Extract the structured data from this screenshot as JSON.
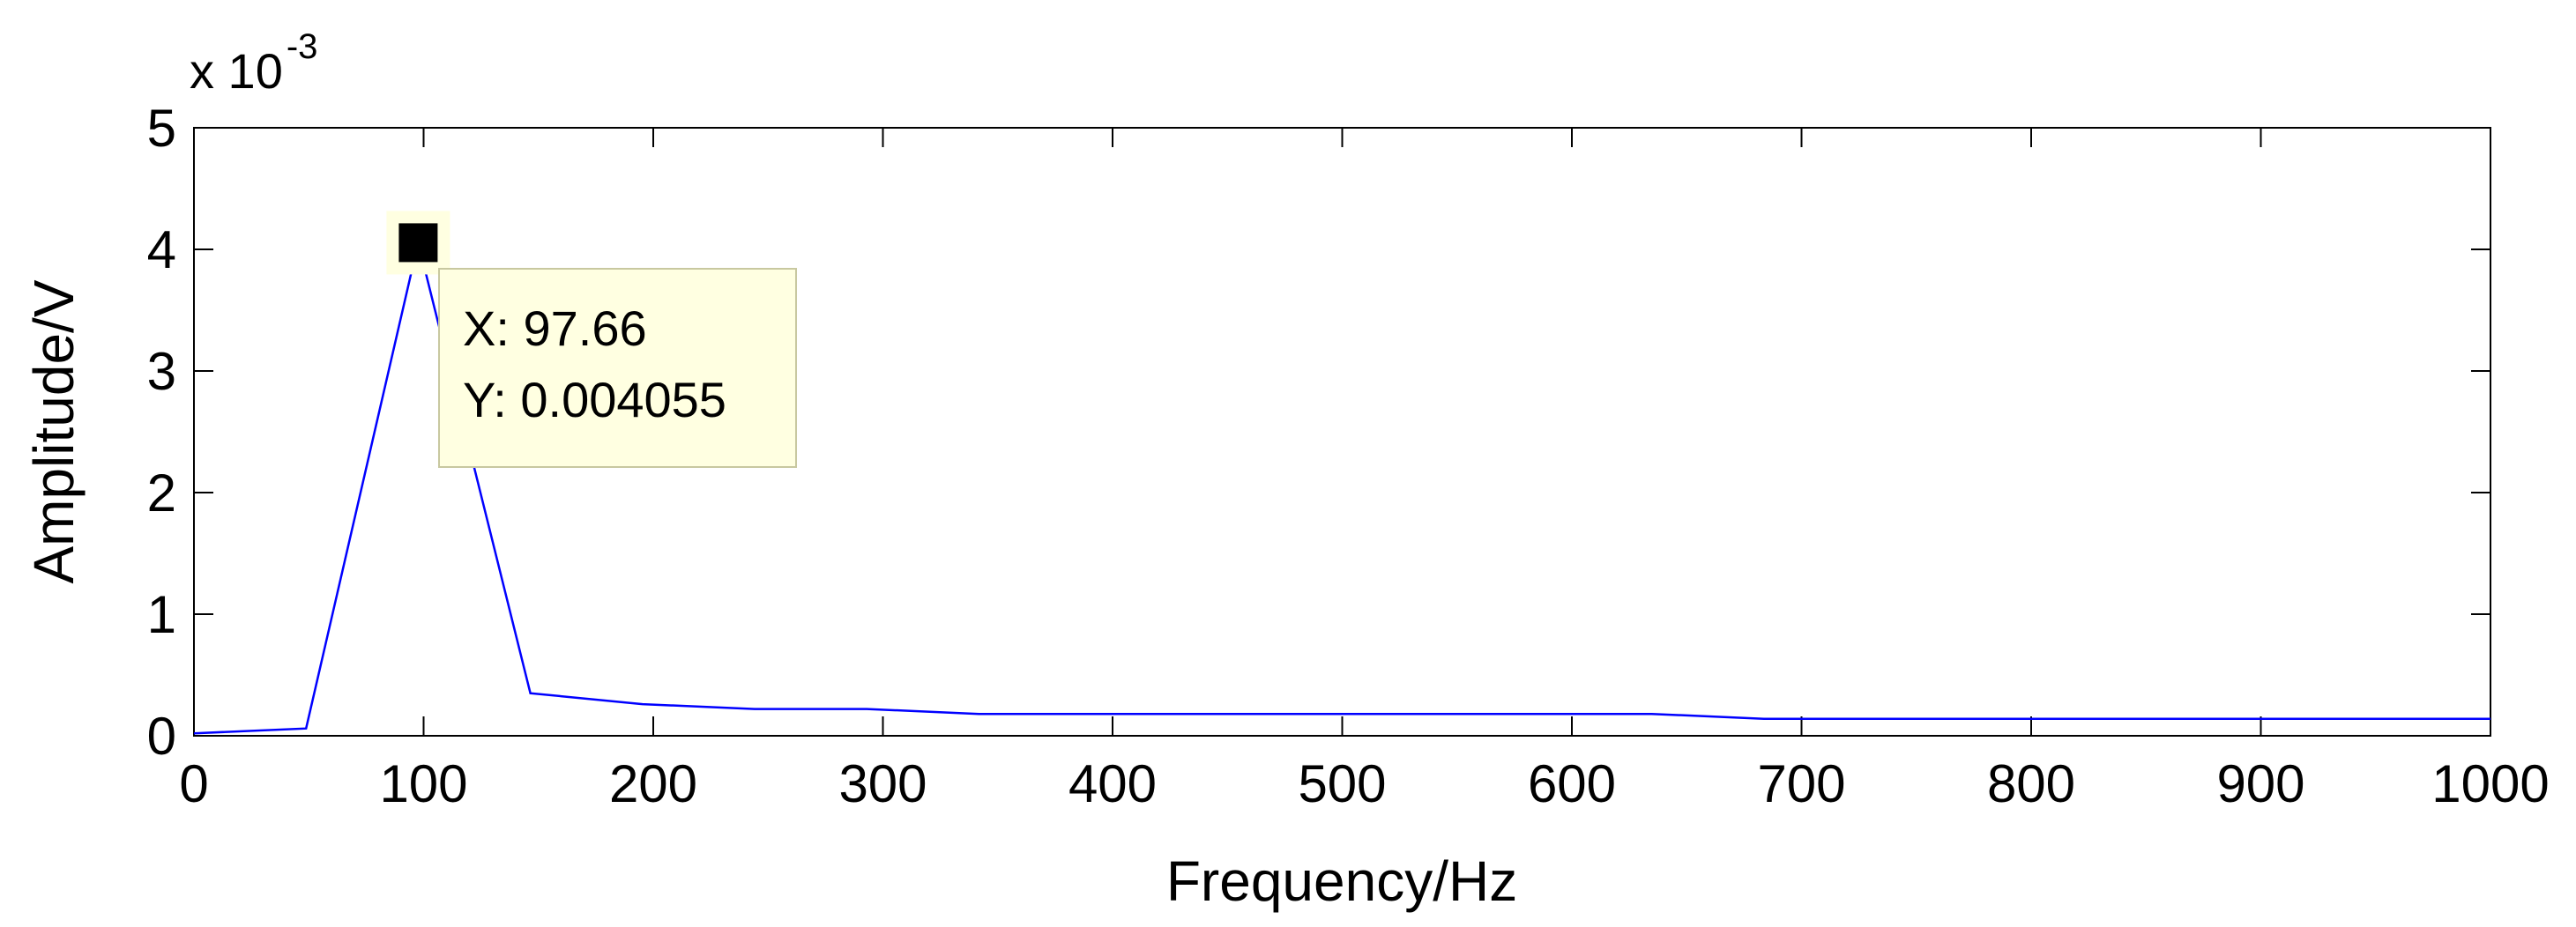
{
  "chart_data": {
    "type": "line",
    "xlabel": "Frequency/Hz",
    "ylabel": "Amplitude/V",
    "xlim": [
      0,
      1000
    ],
    "ylim": [
      0,
      5
    ],
    "y_scale_exponent": {
      "prefix": "x 10",
      "power": "-3"
    },
    "x_ticks": [
      "0",
      "100",
      "200",
      "300",
      "400",
      "500",
      "600",
      "700",
      "800",
      "900",
      "1000"
    ],
    "y_ticks": [
      "0",
      "1",
      "2",
      "3",
      "4",
      "5"
    ],
    "grid": false,
    "line_color": "#0000ff",
    "series": [
      {
        "x": [
          0,
          48.83,
          97.66,
          146.48,
          195.31,
          244.14,
          292.97,
          341.8,
          390.63,
          439.45,
          488.28,
          537.11,
          585.94,
          634.77,
          683.59,
          732.42,
          781.25,
          830.08,
          878.91,
          927.73,
          976.56,
          1000
        ],
        "y": [
          0.02,
          0.06,
          4.055,
          0.35,
          0.26,
          0.22,
          0.22,
          0.18,
          0.18,
          0.18,
          0.18,
          0.18,
          0.18,
          0.18,
          0.14,
          0.14,
          0.14,
          0.14,
          0.14,
          0.14,
          0.14,
          0.14
        ]
      }
    ],
    "datatip": {
      "x": 97.66,
      "y": 4.055,
      "line_x": "X: 97.66",
      "line_y": "Y: 0.004055",
      "bg_color": "#ffffe1"
    }
  }
}
